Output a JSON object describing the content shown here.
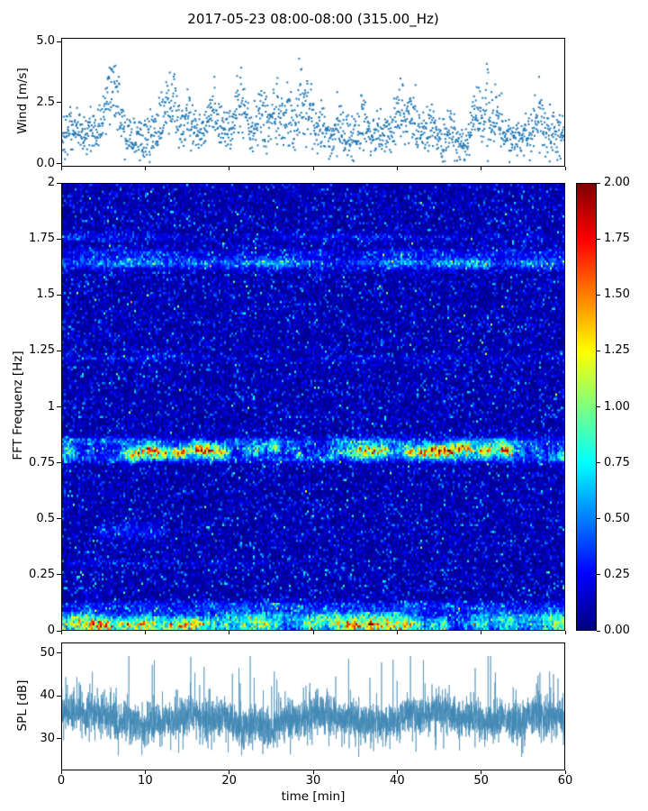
{
  "title": "2017-05-23 08:00-08:00 (315.00_Hz)",
  "xlabel": "time [min]",
  "x_ticks": [
    0,
    10,
    20,
    30,
    40,
    50,
    60
  ],
  "x_tick_labels": [
    "0",
    "10",
    "20",
    "30",
    "40",
    "50",
    "60"
  ],
  "colors": {
    "scatter": "#1f77b4",
    "line": "#3f88b4",
    "axis": "#000000",
    "background": "#ffffff"
  },
  "chart_data": [
    {
      "type": "scatter",
      "name": "wind-speed",
      "ylabel": "Wind [m/s]",
      "xlim": [
        0,
        60
      ],
      "ylim": [
        -0.12,
        5.15
      ],
      "yticks": [
        0.0,
        2.5,
        5.0
      ],
      "ytick_labels": [
        "0.0",
        "2.5",
        "5.0"
      ],
      "n_points": 1700,
      "baseline_mean": 1.05,
      "noise_sd": 0.45,
      "max_value": 5.0,
      "bursts": [
        {
          "t": 5.6,
          "amp": 2.6,
          "w": 0.5
        },
        {
          "t": 6.6,
          "amp": 2.2,
          "w": 0.5
        },
        {
          "t": 12.3,
          "amp": 2.0,
          "w": 0.6
        },
        {
          "t": 13.3,
          "amp": 2.2,
          "w": 0.4
        },
        {
          "t": 15.0,
          "amp": 1.4,
          "w": 0.4
        },
        {
          "t": 18.0,
          "amp": 1.2,
          "w": 0.5
        },
        {
          "t": 21.5,
          "amp": 1.8,
          "w": 0.6
        },
        {
          "t": 24.0,
          "amp": 1.6,
          "w": 0.5
        },
        {
          "t": 25.5,
          "amp": 2.0,
          "w": 0.4
        },
        {
          "t": 27.0,
          "amp": 1.9,
          "w": 0.5
        },
        {
          "t": 28.5,
          "amp": 3.4,
          "w": 0.35
        },
        {
          "t": 29.6,
          "amp": 2.6,
          "w": 0.4
        },
        {
          "t": 31.0,
          "amp": 1.6,
          "w": 0.5
        },
        {
          "t": 33.0,
          "amp": 1.3,
          "w": 0.4
        },
        {
          "t": 36.0,
          "amp": 1.4,
          "w": 0.5
        },
        {
          "t": 40.5,
          "amp": 1.9,
          "w": 0.6
        },
        {
          "t": 42.0,
          "amp": 1.7,
          "w": 0.5
        },
        {
          "t": 44.0,
          "amp": 1.6,
          "w": 0.4
        },
        {
          "t": 46.5,
          "amp": 1.3,
          "w": 0.4
        },
        {
          "t": 49.3,
          "amp": 2.3,
          "w": 0.5
        },
        {
          "t": 50.6,
          "amp": 2.6,
          "w": 0.5
        },
        {
          "t": 52.0,
          "amp": 2.0,
          "w": 0.5
        },
        {
          "t": 57.0,
          "amp": 1.3,
          "w": 0.5
        }
      ]
    },
    {
      "type": "heatmap",
      "name": "fft-spectrogram",
      "ylabel": "FFT Frequenz [Hz]",
      "xlim": [
        0,
        60
      ],
      "ylim": [
        0,
        2
      ],
      "yticks": [
        0,
        0.25,
        0.5,
        0.75,
        1,
        1.25,
        1.5,
        1.75,
        2
      ],
      "ytick_labels": [
        "0",
        "0.25",
        "0.5",
        "0.75",
        "1",
        "1.25",
        "1.5",
        "1.75",
        "2"
      ],
      "colormap": "jet",
      "vmin": 0,
      "vmax": 2,
      "baseline_mean": 0.13,
      "speckle_prob": 0.012,
      "bands": [
        {
          "f": 0.02,
          "width": 0.022,
          "intensity": 1.5,
          "note": "strong multicolor band at very low frequency"
        },
        {
          "f": 0.06,
          "width": 0.018,
          "intensity": 0.55
        },
        {
          "f": 0.105,
          "width": 0.015,
          "intensity": 0.3
        },
        {
          "f": 0.8,
          "width": 0.02,
          "intensity": 1.6,
          "wobble": 0.012,
          "note": "dominant band near 0.8 Hz with yellow-red core"
        },
        {
          "f": 0.845,
          "width": 0.013,
          "intensity": 0.5
        },
        {
          "f": 0.765,
          "width": 0.011,
          "intensity": 0.4
        },
        {
          "f": 1.645,
          "width": 0.018,
          "intensity": 0.65,
          "note": "secondary cyan-green band near 1.65 Hz"
        },
        {
          "f": 1.69,
          "width": 0.012,
          "intensity": 0.28
        },
        {
          "f": 1.76,
          "width": 0.012,
          "intensity": 0.22
        },
        {
          "f": 0.45,
          "width": 0.018,
          "intensity": 0.55,
          "t_range": [
            4,
            13
          ],
          "note": "short-lived patch between 4 and 13 min"
        },
        {
          "f": 0.42,
          "width": 0.012,
          "intensity": 0.3,
          "t_range": [
            4,
            12
          ]
        },
        {
          "f": 1.22,
          "width": 0.012,
          "intensity": 0.15
        },
        {
          "f": 0.3,
          "width": 0.012,
          "intensity": 0.15,
          "t_range": [
            0,
            25
          ]
        }
      ]
    },
    {
      "type": "line",
      "name": "spl",
      "ylabel": "SPL [dB]",
      "xlim": [
        0,
        60
      ],
      "ylim": [
        22.5,
        52.5
      ],
      "yticks": [
        30,
        40,
        50
      ],
      "ytick_labels": [
        "30",
        "40",
        "50"
      ],
      "mean": 34.5,
      "sd": 2.8,
      "peak": 49.5,
      "min": 25.5,
      "n_points": 4200
    }
  ],
  "colorbar": {
    "vmin": 0,
    "vmax": 2,
    "ticks": [
      0,
      0.25,
      0.5,
      0.75,
      1,
      1.25,
      1.5,
      1.75,
      2
    ],
    "tick_labels": [
      "0.00",
      "0.25",
      "0.50",
      "0.75",
      "1.00",
      "1.25",
      "1.50",
      "1.75",
      "2.00"
    ]
  }
}
